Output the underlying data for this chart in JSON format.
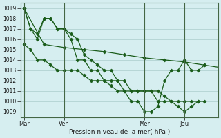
{
  "bg_color": "#d6eef0",
  "grid_color": "#aacccc",
  "line_color": "#1a5c1a",
  "marker_color": "#1a5c1a",
  "xlabel": "Pression niveau de la mer( hPa )",
  "ylim": [
    1008.5,
    1019.5
  ],
  "yticks": [
    1009,
    1010,
    1011,
    1012,
    1013,
    1014,
    1015,
    1016,
    1017,
    1018,
    1019
  ],
  "xtick_labels": [
    "Mar",
    "Ven",
    "Mer",
    "Jeu"
  ],
  "xtick_positions": [
    0,
    12,
    36,
    48
  ],
  "vlines": [
    0,
    12,
    36,
    48
  ],
  "series1_x": [
    0,
    2,
    4,
    6,
    8,
    10,
    12,
    14,
    16,
    18,
    20,
    22,
    24,
    26,
    28,
    30,
    32,
    34,
    36,
    38,
    40,
    42,
    44,
    46,
    48,
    50,
    52,
    54
  ],
  "series1": [
    1019,
    1017,
    1016,
    1018,
    1018,
    1017,
    1017,
    1016,
    1014,
    1014,
    1013,
    1013,
    1012,
    1012,
    1012,
    1011,
    1010,
    1010,
    1009,
    1009,
    1009.5,
    1012,
    1013,
    1013,
    1014,
    1013,
    1013,
    1013.5
  ],
  "series2_x": [
    0,
    6,
    12,
    18,
    24,
    30,
    36,
    42,
    48,
    54,
    60
  ],
  "series2": [
    1019,
    1015.5,
    1015.2,
    1015,
    1014.8,
    1014.5,
    1014.2,
    1014,
    1013.8,
    1013.5,
    1013.2
  ],
  "series3_x": [
    0,
    2,
    4,
    6,
    8,
    10,
    12,
    14,
    16,
    18,
    20,
    22,
    24,
    26,
    28,
    30,
    32,
    34,
    36,
    38,
    40,
    42,
    44,
    46,
    48,
    50,
    52
  ],
  "series3": [
    1015.5,
    1015,
    1014,
    1014,
    1013.5,
    1013,
    1013,
    1013,
    1013,
    1012.5,
    1012,
    1012,
    1012,
    1011.5,
    1011,
    1011,
    1011,
    1011,
    1011,
    1011,
    1010,
    1010,
    1010,
    1010,
    1010,
    1010,
    1010
  ],
  "series4_x": [
    0,
    2,
    4,
    6,
    8,
    10,
    12,
    14,
    16,
    18,
    20,
    22,
    24,
    26,
    28,
    30,
    32,
    34,
    36,
    38,
    40,
    42,
    44,
    46,
    48,
    50,
    52,
    54
  ],
  "series4": [
    1019,
    1017,
    1016.5,
    1018,
    1018,
    1017,
    1017,
    1016.5,
    1016,
    1014.5,
    1014,
    1013.5,
    1013,
    1013,
    1012,
    1012,
    1011,
    1011,
    1011,
    1011,
    1011,
    1010.5,
    1010,
    1009.5,
    1009,
    1009.5,
    1010,
    1010
  ]
}
